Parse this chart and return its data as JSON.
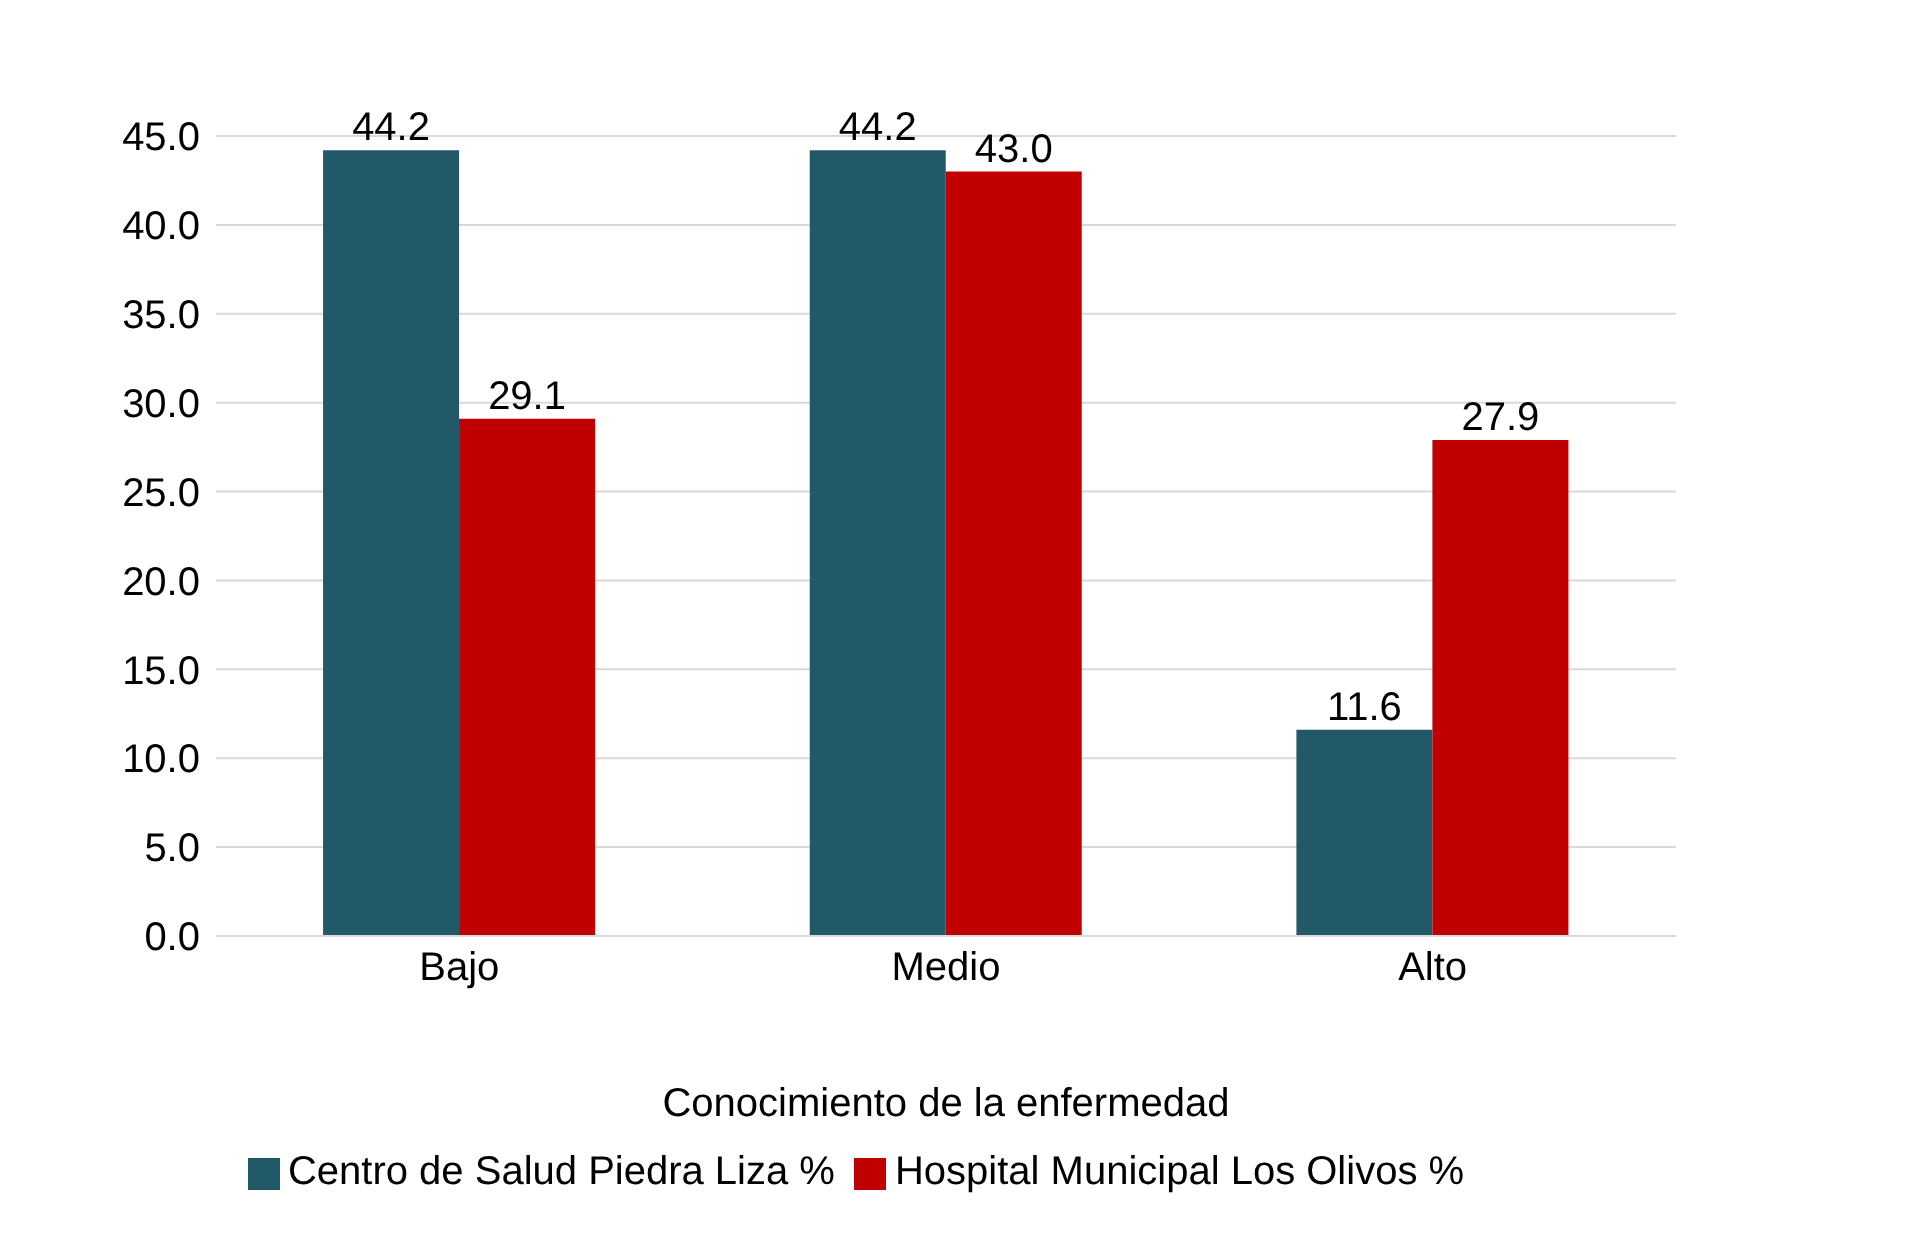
{
  "chart_data": {
    "type": "bar",
    "xlabel": "Conocimiento de la enfermedad",
    "categories": [
      "Bajo",
      "Medio",
      "Alto"
    ],
    "series": [
      {
        "name": "Centro de Salud Piedra Liza %",
        "color": "#215968",
        "values": [
          44.2,
          44.2,
          11.6
        ],
        "value_labels": [
          "44.2",
          "44.2",
          "11.6"
        ]
      },
      {
        "name": "Hospital Municipal Los Olivos %",
        "color": "#c00000",
        "values": [
          29.1,
          43.0,
          27.9
        ],
        "value_labels": [
          "29.1",
          "43.0",
          "27.9"
        ]
      }
    ],
    "ylim": [
      0,
      45
    ],
    "yticks": [
      {
        "value": 0,
        "label": "0.0"
      },
      {
        "value": 5,
        "label": "5.0"
      },
      {
        "value": 10,
        "label": "10.0"
      },
      {
        "value": 15,
        "label": "15.0"
      },
      {
        "value": 20,
        "label": "20.0"
      },
      {
        "value": 25,
        "label": "25.0"
      },
      {
        "value": 30,
        "label": "30.0"
      },
      {
        "value": 35,
        "label": "35.0"
      },
      {
        "value": 40,
        "label": "40.0"
      },
      {
        "value": 45,
        "label": "45.0"
      }
    ],
    "grid": "y",
    "legend": "bottom"
  }
}
